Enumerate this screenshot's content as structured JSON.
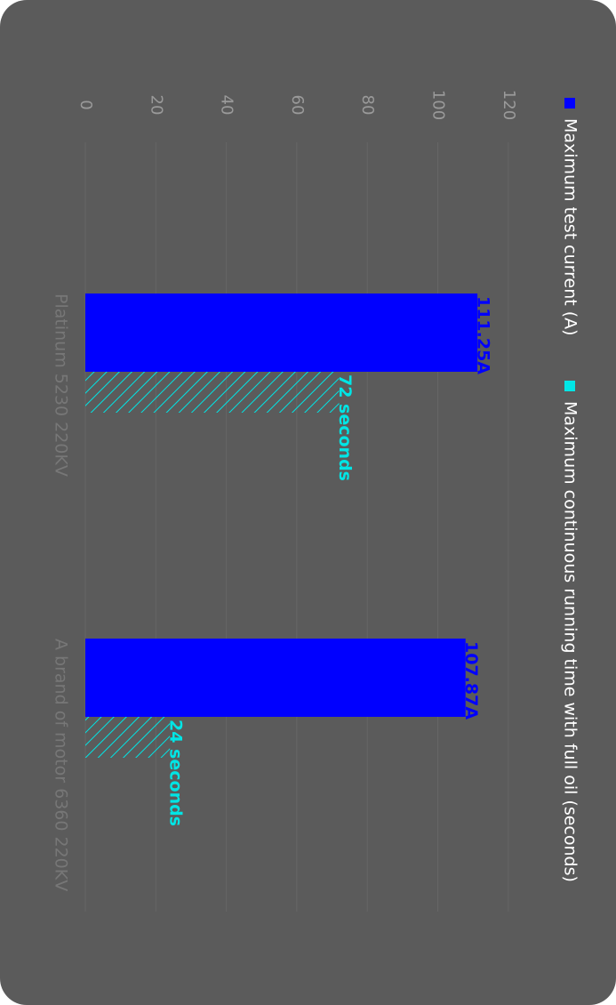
{
  "chart_data": {
    "type": "bar",
    "orientation": "rotated-90-clockwise",
    "categories": [
      "Platinum 5230 220KV",
      "A brand of motor 6360 220KV"
    ],
    "series": [
      {
        "name": "Maximum test current (A)",
        "values": [
          111.25,
          107.87
        ],
        "data_labels": [
          "111.25A",
          "107.87A"
        ],
        "color": "#0000ff",
        "pattern": "solid"
      },
      {
        "name": "Maximum continuous running time with full oil (seconds)",
        "values": [
          72,
          24
        ],
        "data_labels": [
          "72 seconds",
          "24 seconds"
        ],
        "color": "#00e5e5",
        "pattern": "hatched"
      }
    ],
    "value_ticks": [
      "0",
      "20",
      "40",
      "60",
      "80",
      "100",
      "120"
    ],
    "ylim": [
      0,
      120
    ],
    "grid": true,
    "legend_position": "top"
  },
  "colors": {
    "card_background": "#5b5b5b",
    "tick_text": "#9a9a9a",
    "category_text": "#777777",
    "legend_text": "#ffffff"
  }
}
